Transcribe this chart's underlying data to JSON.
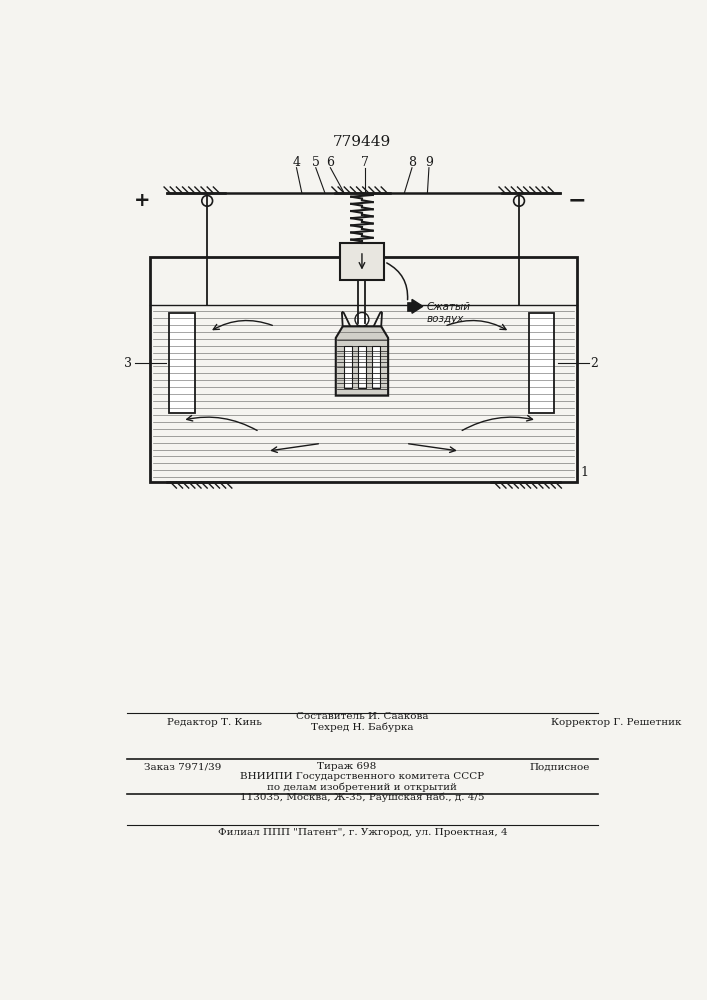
{
  "patent_number": "779449",
  "background_color": "#f5f4f0",
  "text_color": "#1a1a1a",
  "editor_line": "Редактор Т. Кинь",
  "composer_line": "Составитель И. Саакова",
  "techred_line": "Техред Н. Бабурка",
  "corrector_line": "Корректор Г. Решетник",
  "order_line": "Заказ 7971/39",
  "tirazh_line": "Тираж 698",
  "podpisnoe_line": "Подписное",
  "vniipni_line1": "ВНИИПИ Государственного комитета СССР",
  "vniipni_line2": "по делам изобретений и открытий",
  "vniipni_line3": "113035, Москва, Ж-35, Раушская наб., д. 4/5",
  "filial_line": "Филиал ППП \"Патент\", г. Ужгород, ул. Проектная, 4",
  "compressed_air_label": "Сжатый\nвоздух"
}
